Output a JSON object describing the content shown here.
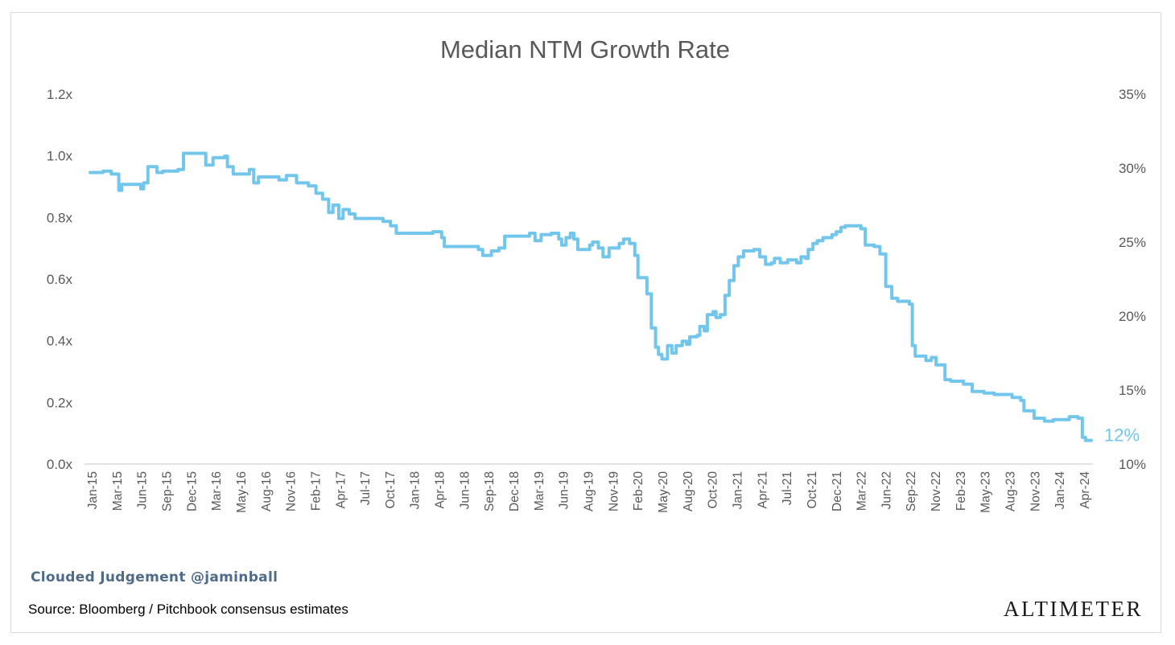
{
  "chart_data": {
    "type": "line",
    "title": "Median NTM Growth Rate",
    "left_axis": {
      "ticks": [
        "0.0x",
        "0.2x",
        "0.4x",
        "0.6x",
        "0.8x",
        "1.0x",
        "1.2x"
      ],
      "range": [
        0,
        1.2
      ]
    },
    "right_axis": {
      "ticks": [
        "10%",
        "15%",
        "20%",
        "25%",
        "30%",
        "35%"
      ],
      "range": [
        10,
        35
      ]
    },
    "x_tick_labels": [
      "Jan-15",
      "Mar-15",
      "Jun-15",
      "Sep-15",
      "Dec-15",
      "Mar-16",
      "May-16",
      "Aug-16",
      "Nov-16",
      "Feb-17",
      "Apr-17",
      "Jul-17",
      "Oct-17",
      "Jan-18",
      "Apr-18",
      "Jun-18",
      "Sep-18",
      "Dec-18",
      "Mar-19",
      "Jun-19",
      "Aug-19",
      "Nov-19",
      "Feb-20",
      "May-20",
      "Aug-20",
      "Oct-20",
      "Jan-21",
      "Apr-21",
      "Jul-21",
      "Oct-21",
      "Dec-21",
      "Mar-22",
      "Jun-22",
      "Sep-22",
      "Nov-22",
      "Feb-23",
      "May-23",
      "Aug-23",
      "Nov-23",
      "Jan-24",
      "Apr-24"
    ],
    "grid": false,
    "legend": "none",
    "series": [
      {
        "axis": "right",
        "color": "#72c6ec",
        "end_label": "12%",
        "points": [
          [
            "2015-01-01",
            29.7
          ],
          [
            "2015-02-15",
            29.8
          ],
          [
            "2015-03-15",
            29.6
          ],
          [
            "2015-04-01",
            29.6
          ],
          [
            "2015-04-10",
            28.5
          ],
          [
            "2015-04-20",
            28.9
          ],
          [
            "2015-06-15",
            28.9
          ],
          [
            "2015-06-25",
            28.6
          ],
          [
            "2015-07-05",
            29.0
          ],
          [
            "2015-07-20",
            30.1
          ],
          [
            "2015-08-20",
            29.7
          ],
          [
            "2015-09-10",
            29.8
          ],
          [
            "2015-11-01",
            29.9
          ],
          [
            "2015-11-20",
            31.0
          ],
          [
            "2016-01-20",
            31.0
          ],
          [
            "2016-02-05",
            30.2
          ],
          [
            "2016-03-01",
            30.7
          ],
          [
            "2016-04-10",
            30.8
          ],
          [
            "2016-04-20",
            30.1
          ],
          [
            "2016-05-10",
            29.6
          ],
          [
            "2016-06-20",
            29.6
          ],
          [
            "2016-07-05",
            29.9
          ],
          [
            "2016-07-20",
            29.0
          ],
          [
            "2016-08-05",
            29.4
          ],
          [
            "2016-10-15",
            29.2
          ],
          [
            "2016-11-10",
            29.5
          ],
          [
            "2016-12-15",
            29.0
          ],
          [
            "2017-01-25",
            28.8
          ],
          [
            "2017-02-20",
            28.3
          ],
          [
            "2017-03-15",
            27.9
          ],
          [
            "2017-04-05",
            27.0
          ],
          [
            "2017-04-20",
            27.5
          ],
          [
            "2017-05-10",
            26.6
          ],
          [
            "2017-05-25",
            27.2
          ],
          [
            "2017-06-15",
            26.9
          ],
          [
            "2017-07-05",
            26.6
          ],
          [
            "2017-10-10",
            26.4
          ],
          [
            "2017-11-05",
            26.1
          ],
          [
            "2017-11-25",
            25.6
          ],
          [
            "2018-04-01",
            25.7
          ],
          [
            "2018-05-01",
            25.3
          ],
          [
            "2018-05-10",
            24.7
          ],
          [
            "2018-09-05",
            24.5
          ],
          [
            "2018-09-20",
            24.1
          ],
          [
            "2018-10-20",
            24.4
          ],
          [
            "2018-11-15",
            24.6
          ],
          [
            "2018-12-05",
            25.4
          ],
          [
            "2019-03-01",
            25.6
          ],
          [
            "2019-03-20",
            25.1
          ],
          [
            "2019-04-10",
            25.5
          ],
          [
            "2019-05-15",
            25.6
          ],
          [
            "2019-06-10",
            25.2
          ],
          [
            "2019-06-20",
            24.8
          ],
          [
            "2019-07-05",
            25.3
          ],
          [
            "2019-07-20",
            25.6
          ],
          [
            "2019-08-01",
            25.2
          ],
          [
            "2019-08-15",
            24.5
          ],
          [
            "2019-09-25",
            24.8
          ],
          [
            "2019-10-05",
            25.0
          ],
          [
            "2019-10-25",
            24.6
          ],
          [
            "2019-11-10",
            24.0
          ],
          [
            "2019-12-01",
            24.6
          ],
          [
            "2020-01-05",
            24.9
          ],
          [
            "2020-01-20",
            25.2
          ],
          [
            "2020-02-10",
            24.9
          ],
          [
            "2020-02-28",
            24.1
          ],
          [
            "2020-03-10",
            22.6
          ],
          [
            "2020-04-10",
            21.5
          ],
          [
            "2020-04-25",
            19.2
          ],
          [
            "2020-05-10",
            17.9
          ],
          [
            "2020-05-20",
            17.4
          ],
          [
            "2020-06-01",
            17.1
          ],
          [
            "2020-06-20",
            18.0
          ],
          [
            "2020-07-05",
            17.5
          ],
          [
            "2020-07-20",
            18.0
          ],
          [
            "2020-08-10",
            18.3
          ],
          [
            "2020-08-25",
            18.1
          ],
          [
            "2020-09-05",
            18.6
          ],
          [
            "2020-10-01",
            18.7
          ],
          [
            "2020-10-10",
            19.3
          ],
          [
            "2020-10-25",
            19.0
          ],
          [
            "2020-11-05",
            20.1
          ],
          [
            "2020-11-25",
            20.3
          ],
          [
            "2020-12-05",
            19.9
          ],
          [
            "2020-12-20",
            20.1
          ],
          [
            "2021-01-05",
            21.4
          ],
          [
            "2021-01-20",
            22.4
          ],
          [
            "2021-02-05",
            23.4
          ],
          [
            "2021-02-20",
            24.0
          ],
          [
            "2021-03-10",
            24.4
          ],
          [
            "2021-04-15",
            24.5
          ],
          [
            "2021-05-05",
            24.0
          ],
          [
            "2021-05-25",
            23.5
          ],
          [
            "2021-06-15",
            23.6
          ],
          [
            "2021-06-25",
            23.9
          ],
          [
            "2021-07-15",
            23.6
          ],
          [
            "2021-08-10",
            23.8
          ],
          [
            "2021-09-10",
            23.6
          ],
          [
            "2021-09-25",
            24.0
          ],
          [
            "2021-10-10",
            23.9
          ],
          [
            "2021-10-20",
            24.5
          ],
          [
            "2021-11-05",
            24.9
          ],
          [
            "2021-11-20",
            25.1
          ],
          [
            "2021-12-10",
            25.3
          ],
          [
            "2022-01-10",
            25.5
          ],
          [
            "2022-01-25",
            25.7
          ],
          [
            "2022-02-10",
            26.0
          ],
          [
            "2022-02-25",
            26.1
          ],
          [
            "2022-04-20",
            25.9
          ],
          [
            "2022-05-05",
            24.8
          ],
          [
            "2022-06-05",
            24.7
          ],
          [
            "2022-06-25",
            24.2
          ],
          [
            "2022-07-15",
            22.0
          ],
          [
            "2022-08-05",
            21.2
          ],
          [
            "2022-08-25",
            21.0
          ],
          [
            "2022-10-05",
            20.8
          ],
          [
            "2022-10-15",
            18.0
          ],
          [
            "2022-10-25",
            17.3
          ],
          [
            "2022-12-01",
            17.0
          ],
          [
            "2022-12-20",
            17.2
          ],
          [
            "2023-01-05",
            16.7
          ],
          [
            "2023-02-05",
            15.7
          ],
          [
            "2023-02-25",
            15.6
          ],
          [
            "2023-04-10",
            15.4
          ],
          [
            "2023-05-10",
            14.9
          ],
          [
            "2023-06-20",
            14.8
          ],
          [
            "2023-07-25",
            14.7
          ],
          [
            "2023-09-25",
            14.5
          ],
          [
            "2023-10-25",
            14.3
          ],
          [
            "2023-11-05",
            13.6
          ],
          [
            "2023-12-10",
            13.1
          ],
          [
            "2024-01-15",
            12.9
          ],
          [
            "2024-02-15",
            13.0
          ],
          [
            "2024-04-10",
            13.2
          ],
          [
            "2024-05-10",
            13.1
          ],
          [
            "2024-05-25",
            11.8
          ],
          [
            "2024-06-05",
            11.6
          ],
          [
            "2024-06-25",
            11.6
          ]
        ]
      }
    ]
  },
  "footer": {
    "credit": "Clouded Judgement @jaminball",
    "source": "Source: Bloomberg / Pitchbook consensus estimates",
    "brand": "Altimeter"
  }
}
